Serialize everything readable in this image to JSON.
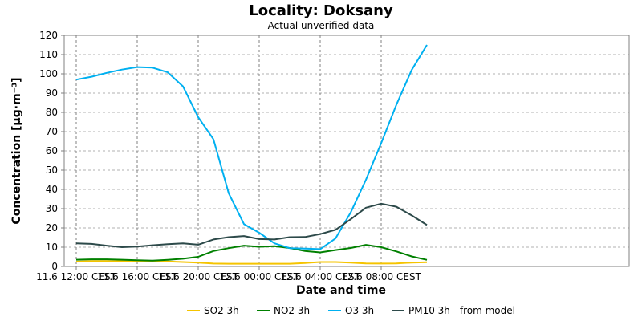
{
  "chart_data": {
    "type": "line",
    "title": "Locality: Doksany",
    "subtitle": "Actual unverified data",
    "xlabel": "Date and time",
    "ylabel": "Concentration [µg·m⁻³]",
    "ylim": [
      0,
      120
    ],
    "yticks": [
      0,
      10,
      20,
      30,
      40,
      50,
      60,
      70,
      80,
      90,
      100,
      110,
      120
    ],
    "x_tick_labels": [
      "11.6 12:00 CEST",
      "11.6 16:00 CEST",
      "11.6 20:00 CEST",
      "12.6 00:00 CEST",
      "12.6 04:00 CEST",
      "12.6 08:00 CEST"
    ],
    "x": [
      "11.6 12:00",
      "11.6 13:00",
      "11.6 14:00",
      "11.6 15:00",
      "11.6 16:00",
      "11.6 17:00",
      "11.6 18:00",
      "11.6 19:00",
      "11.6 20:00",
      "11.6 21:00",
      "11.6 22:00",
      "11.6 23:00",
      "12.6 00:00",
      "12.6 01:00",
      "12.6 02:00",
      "12.6 03:00",
      "12.6 04:00",
      "12.6 05:00",
      "12.6 06:00",
      "12.6 07:00",
      "12.6 08:00",
      "12.6 09:00",
      "12.6 10:00",
      "12.6 11:00"
    ],
    "grid": true,
    "legend_position": "bottom",
    "series": [
      {
        "name": "SO2 3h",
        "color": "#f5c400",
        "values": [
          2.5,
          2.8,
          2.8,
          2.7,
          2.6,
          2.6,
          2.6,
          2.3,
          2.0,
          1.5,
          1.4,
          1.4,
          1.4,
          1.4,
          1.4,
          1.8,
          2.3,
          2.3,
          2.0,
          1.6,
          1.5,
          1.6,
          2.0,
          2.2
        ]
      },
      {
        "name": "NO2 3h",
        "color": "#008000",
        "values": [
          3.5,
          3.7,
          3.7,
          3.5,
          3.2,
          3.0,
          3.4,
          4.0,
          5.0,
          8.0,
          9.5,
          10.8,
          10.2,
          10.5,
          9.6,
          8.0,
          7.3,
          8.5,
          9.6,
          11.2,
          10.0,
          7.8,
          5.2,
          3.4
        ]
      },
      {
        "name": "O3 3h",
        "color": "#00b0f0",
        "values": [
          97,
          98.5,
          100.5,
          102.2,
          103.5,
          103.2,
          100.8,
          93.5,
          77.5,
          66,
          38,
          22,
          17.5,
          12.0,
          9.5,
          9.3,
          9.0,
          14.5,
          28,
          45,
          64,
          84,
          102,
          115
        ]
      },
      {
        "name": "PM10 3h - from model",
        "color": "#2d4a4a",
        "values": [
          12.0,
          11.7,
          10.8,
          10.0,
          10.3,
          11.0,
          11.6,
          12.0,
          11.3,
          14.0,
          15.2,
          15.8,
          14.2,
          14.0,
          15.2,
          15.3,
          16.8,
          19.0,
          24.5,
          30.5,
          32.6,
          31.0,
          26.5,
          21.5
        ]
      }
    ]
  }
}
